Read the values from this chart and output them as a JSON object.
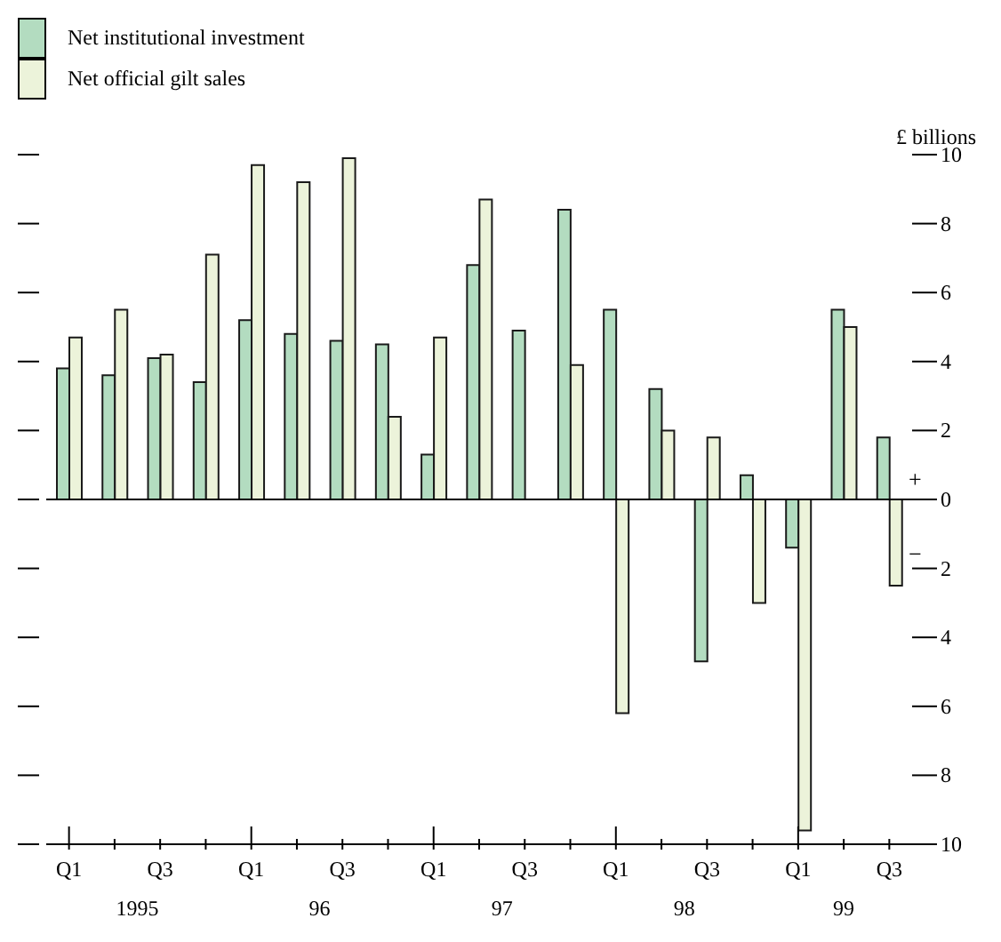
{
  "chart_data": {
    "type": "bar",
    "ylabel": "£ billions",
    "categories": [
      "Q1",
      null,
      "Q3",
      null,
      "Q1",
      null,
      "Q3",
      null,
      "Q1",
      null,
      "Q3",
      null,
      "Q1",
      null,
      "Q3",
      null,
      "Q1",
      null,
      "Q3"
    ],
    "series": [
      {
        "name": "Net institutional investment",
        "color": "#b3dcc0",
        "values": [
          3.8,
          3.6,
          4.1,
          3.4,
          5.2,
          4.8,
          4.6,
          4.5,
          1.3,
          6.8,
          4.9,
          8.4,
          5.5,
          3.2,
          -4.7,
          0.7,
          -1.4,
          5.5,
          1.8
        ]
      },
      {
        "name": "Net official gilt sales",
        "color": "#ecf3da",
        "values": [
          4.7,
          5.5,
          4.2,
          7.1,
          9.7,
          9.2,
          9.9,
          2.4,
          4.7,
          8.7,
          null,
          3.9,
          -6.2,
          2.0,
          1.8,
          -3.0,
          -9.6,
          5.0,
          -2.5
        ]
      }
    ],
    "ylim": [
      -10,
      10
    ],
    "yticks": [
      {
        "value": -10,
        "label": "10"
      },
      {
        "value": -8,
        "label": "8"
      },
      {
        "value": -6,
        "label": "6"
      },
      {
        "value": -4,
        "label": "4"
      },
      {
        "value": -2,
        "label": "2"
      },
      0,
      2,
      4,
      6,
      8,
      10
    ],
    "ref_lines": [
      {
        "axis": "y",
        "value": 0
      }
    ],
    "annotations": [
      "1995",
      "96",
      "97",
      "98",
      "99",
      "+",
      "−"
    ],
    "grid": false,
    "legend": "top left"
  }
}
